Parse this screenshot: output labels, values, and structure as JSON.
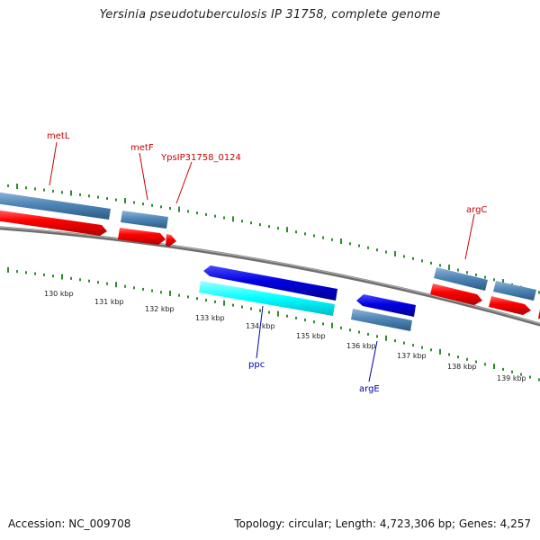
{
  "title": "Yersinia pseudotuberculosis IP 31758, complete genome",
  "footer": {
    "accession": "Accession: NC_009708",
    "summary": "Topology: circular; Length: 4,723,306 bp; Genes: 4,257"
  },
  "colors": {
    "forward_gene": "#4f86b6",
    "forward_cds": "#ff0000",
    "reverse_cds": "#0000e0",
    "reverse_gene": "#4f86b6",
    "rna": "#00ffff",
    "backbone": "#777777",
    "ticks": "#2e8b2e",
    "forward_label": "#cc0000",
    "reverse_label": "#0000aa"
  },
  "scale_labels": [
    "130 kbp",
    "131 kbp",
    "132 kbp",
    "133 kbp",
    "134 kbp",
    "135 kbp",
    "136 kbp",
    "137 kbp",
    "138 kbp",
    "139 kbp"
  ],
  "features": {
    "forward": [
      "metL",
      "metF",
      "YpsIP31758_0124",
      "argC"
    ],
    "reverse": [
      "ppc",
      "argE"
    ]
  }
}
